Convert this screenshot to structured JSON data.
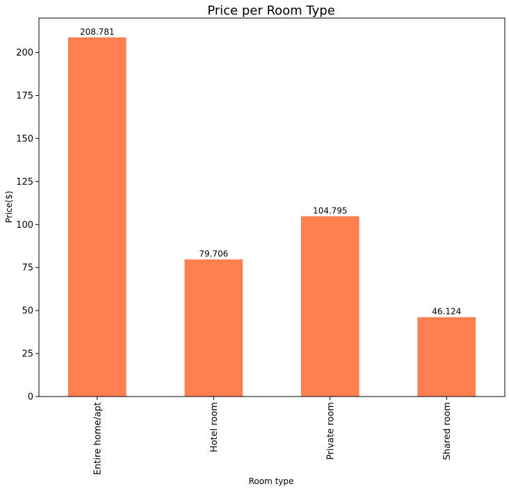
{
  "chart_data": {
    "type": "bar",
    "title": "Price per Room Type",
    "xlabel": "Room type",
    "ylabel": "Price($)",
    "categories": [
      "Entire home/apt",
      "Hotel room",
      "Private room",
      "Shared room"
    ],
    "values": [
      208.781,
      79.706,
      104.795,
      46.124
    ],
    "value_labels": [
      "208.781",
      "79.706",
      "104.795",
      "46.124"
    ],
    "ylim": [
      0,
      220
    ],
    "yticks": [
      0,
      25,
      50,
      75,
      100,
      125,
      150,
      175,
      200
    ],
    "bar_color": "#ff7f50",
    "grid": false,
    "legend": "none"
  }
}
